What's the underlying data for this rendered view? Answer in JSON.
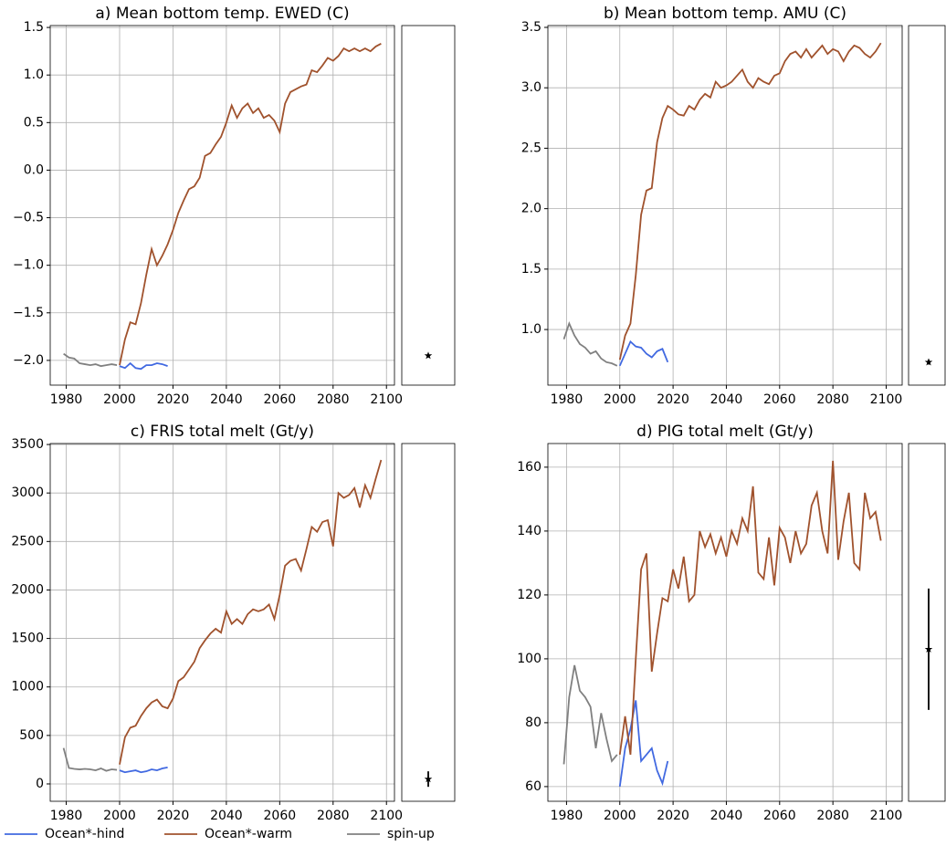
{
  "chart_data": [
    {
      "type": "line",
      "title": "a) Mean bottom temp. EWED (C)",
      "grid": true,
      "xlim": [
        1974,
        2103
      ],
      "xticks": [
        1980,
        2000,
        2020,
        2040,
        2060,
        2080,
        2100
      ],
      "ylim": [
        -2.26,
        1.52
      ],
      "yticks": [
        {
          "value": -2,
          "label": "−2.0"
        },
        {
          "value": -1.5,
          "label": "−1.5"
        },
        {
          "value": -1,
          "label": "−1.0"
        },
        {
          "value": -0.5,
          "label": "−0.5"
        },
        {
          "value": 0,
          "label": "0.0"
        },
        0.5,
        {
          "value": 1,
          "label": "1.0"
        },
        1.5
      ],
      "series": [
        {
          "name": "Ocean*-hind",
          "color": "#4169e1",
          "x": [
            2000,
            2002,
            2004,
            2006,
            2008,
            2010,
            2012,
            2014,
            2016,
            2018
          ],
          "values": [
            -2.06,
            -2.08,
            -2.03,
            -2.08,
            -2.09,
            -2.05,
            -2.05,
            -2.03,
            -2.04,
            -2.06
          ]
        },
        {
          "name": "Ocean*-warm",
          "color": "#a0522d",
          "x": [
            2000,
            2002,
            2004,
            2006,
            2008,
            2010,
            2012,
            2014,
            2016,
            2018,
            2020,
            2022,
            2024,
            2026,
            2028,
            2030,
            2032,
            2034,
            2036,
            2038,
            2040,
            2042,
            2044,
            2046,
            2048,
            2050,
            2052,
            2054,
            2056,
            2058,
            2060,
            2062,
            2064,
            2066,
            2068,
            2070,
            2072,
            2074,
            2076,
            2078,
            2080,
            2082,
            2084,
            2086,
            2088,
            2090,
            2092,
            2094,
            2096,
            2098
          ],
          "values": [
            -2.05,
            -1.78,
            -1.6,
            -1.62,
            -1.4,
            -1.1,
            -0.83,
            -1.0,
            -0.9,
            -0.78,
            -0.63,
            -0.45,
            -0.32,
            -0.2,
            -0.17,
            -0.08,
            0.15,
            0.18,
            0.27,
            0.35,
            0.5,
            0.68,
            0.55,
            0.65,
            0.7,
            0.6,
            0.65,
            0.55,
            0.58,
            0.52,
            0.4,
            0.7,
            0.82,
            0.85,
            0.88,
            0.9,
            1.05,
            1.03,
            1.1,
            1.18,
            1.15,
            1.2,
            1.28,
            1.25,
            1.28,
            1.25,
            1.28,
            1.25,
            1.3,
            1.33
          ]
        },
        {
          "name": "spin-up",
          "color": "#808080",
          "x": [
            1979,
            1981,
            1983,
            1985,
            1987,
            1989,
            1991,
            1993,
            1995,
            1997,
            1999
          ],
          "values": [
            -1.93,
            -1.97,
            -1.98,
            -2.03,
            -2.04,
            -2.05,
            -2.04,
            -2.06,
            -2.05,
            -2.04,
            -2.05
          ]
        }
      ],
      "obs": {
        "value": -1.95,
        "error": 0.02,
        "color": "#000000"
      }
    },
    {
      "type": "line",
      "title": "b) Mean bottom temp. AMU (C)",
      "grid": true,
      "xlim": [
        1973,
        2106
      ],
      "xticks": [
        1980,
        2000,
        2020,
        2040,
        2060,
        2080,
        2100
      ],
      "ylim": [
        0.54,
        3.515
      ],
      "yticks": [
        {
          "value": 1,
          "label": "1.0"
        },
        1.5,
        {
          "value": 2,
          "label": "2.0"
        },
        2.5,
        {
          "value": 3,
          "label": "3.0"
        },
        3.5
      ],
      "series": [
        {
          "name": "Ocean*-hind",
          "color": "#4169e1",
          "x": [
            2000,
            2002,
            2004,
            2006,
            2008,
            2010,
            2012,
            2014,
            2016,
            2018
          ],
          "values": [
            0.7,
            0.8,
            0.9,
            0.86,
            0.85,
            0.8,
            0.77,
            0.82,
            0.84,
            0.73
          ]
        },
        {
          "name": "Ocean*-warm",
          "color": "#a0522d",
          "x": [
            2000,
            2002,
            2004,
            2006,
            2008,
            2010,
            2012,
            2014,
            2016,
            2018,
            2020,
            2022,
            2024,
            2026,
            2028,
            2030,
            2032,
            2034,
            2036,
            2038,
            2040,
            2042,
            2044,
            2046,
            2048,
            2050,
            2052,
            2054,
            2056,
            2058,
            2060,
            2062,
            2064,
            2066,
            2068,
            2070,
            2072,
            2074,
            2076,
            2078,
            2080,
            2082,
            2084,
            2086,
            2088,
            2090,
            2092,
            2094,
            2096,
            2098
          ],
          "values": [
            0.75,
            0.95,
            1.05,
            1.45,
            1.95,
            2.15,
            2.17,
            2.55,
            2.75,
            2.85,
            2.82,
            2.78,
            2.77,
            2.85,
            2.82,
            2.9,
            2.95,
            2.92,
            3.05,
            3.0,
            3.02,
            3.05,
            3.1,
            3.15,
            3.05,
            3.0,
            3.08,
            3.05,
            3.03,
            3.1,
            3.12,
            3.22,
            3.28,
            3.3,
            3.25,
            3.32,
            3.25,
            3.3,
            3.35,
            3.28,
            3.32,
            3.3,
            3.22,
            3.3,
            3.35,
            3.33,
            3.28,
            3.25,
            3.3,
            3.37
          ]
        },
        {
          "name": "spin-up",
          "color": "#808080",
          "x": [
            1979,
            1981,
            1983,
            1985,
            1987,
            1989,
            1991,
            1993,
            1995,
            1997,
            1999
          ],
          "values": [
            0.92,
            1.05,
            0.95,
            0.88,
            0.85,
            0.8,
            0.82,
            0.76,
            0.73,
            0.72,
            0.7
          ]
        }
      ],
      "obs": {
        "value": 0.73,
        "error": 0.02,
        "color": "#000000"
      }
    },
    {
      "type": "line",
      "title": "c) FRIS total melt (Gt/y)",
      "grid": true,
      "xlim": [
        1974,
        2103
      ],
      "xticks": [
        1980,
        2000,
        2020,
        2040,
        2060,
        2080,
        2100
      ],
      "ylim": [
        -179,
        3510
      ],
      "yticks": [
        0,
        500,
        1000,
        1500,
        2000,
        2500,
        3000,
        3500
      ],
      "series": [
        {
          "name": "Ocean*-hind",
          "color": "#4169e1",
          "x": [
            2000,
            2002,
            2004,
            2006,
            2008,
            2010,
            2012,
            2014,
            2016,
            2018
          ],
          "values": [
            140,
            120,
            130,
            140,
            120,
            130,
            150,
            140,
            160,
            170
          ]
        },
        {
          "name": "Ocean*-warm",
          "color": "#a0522d",
          "x": [
            2000,
            2002,
            2004,
            2006,
            2008,
            2010,
            2012,
            2014,
            2016,
            2018,
            2020,
            2022,
            2024,
            2026,
            2028,
            2030,
            2032,
            2034,
            2036,
            2038,
            2040,
            2042,
            2044,
            2046,
            2048,
            2050,
            2052,
            2054,
            2056,
            2058,
            2060,
            2062,
            2064,
            2066,
            2068,
            2070,
            2072,
            2074,
            2076,
            2078,
            2080,
            2082,
            2084,
            2086,
            2088,
            2090,
            2092,
            2094,
            2096,
            2098
          ],
          "values": [
            200,
            480,
            580,
            600,
            700,
            780,
            840,
            870,
            800,
            780,
            880,
            1060,
            1100,
            1180,
            1260,
            1400,
            1480,
            1550,
            1600,
            1560,
            1780,
            1650,
            1700,
            1650,
            1750,
            1800,
            1780,
            1800,
            1850,
            1700,
            1950,
            2250,
            2300,
            2320,
            2200,
            2420,
            2650,
            2600,
            2700,
            2720,
            2450,
            3000,
            2950,
            2980,
            3050,
            2850,
            3080,
            2950,
            3150,
            3340
          ]
        },
        {
          "name": "spin-up",
          "color": "#808080",
          "x": [
            1979,
            1981,
            1983,
            1985,
            1987,
            1989,
            1991,
            1993,
            1995,
            1997,
            1999
          ],
          "values": [
            370,
            165,
            155,
            150,
            155,
            150,
            140,
            160,
            135,
            150,
            145
          ]
        }
      ],
      "obs": {
        "value": 50,
        "error": 80,
        "color": "#000000"
      }
    },
    {
      "type": "line",
      "title": "d) PIG total melt (Gt/y)",
      "grid": true,
      "xlim": [
        1973,
        2106
      ],
      "xticks": [
        1980,
        2000,
        2020,
        2040,
        2060,
        2080,
        2100
      ],
      "ylim": [
        55.4,
        167.4
      ],
      "yticks": [
        60,
        80,
        100,
        120,
        140,
        160
      ],
      "series": [
        {
          "name": "Ocean*-hind",
          "color": "#4169e1",
          "x": [
            2000,
            2002,
            2004,
            2006,
            2008,
            2010,
            2012,
            2014,
            2016,
            2018
          ],
          "values": [
            60,
            72,
            78,
            87,
            68,
            70,
            72,
            65,
            61,
            68
          ]
        },
        {
          "name": "Ocean*-warm",
          "color": "#a0522d",
          "x": [
            2000,
            2002,
            2004,
            2006,
            2008,
            2010,
            2012,
            2014,
            2016,
            2018,
            2020,
            2022,
            2024,
            2026,
            2028,
            2030,
            2032,
            2034,
            2036,
            2038,
            2040,
            2042,
            2044,
            2046,
            2048,
            2050,
            2052,
            2054,
            2056,
            2058,
            2060,
            2062,
            2064,
            2066,
            2068,
            2070,
            2072,
            2074,
            2076,
            2078,
            2080,
            2082,
            2084,
            2086,
            2088,
            2090,
            2092,
            2094,
            2096,
            2098
          ],
          "values": [
            70,
            82,
            70,
            100,
            128,
            133,
            96,
            108,
            119,
            118,
            128,
            122,
            132,
            118,
            120,
            140,
            135,
            139,
            133,
            138,
            132,
            140,
            136,
            144,
            140,
            154,
            127,
            125,
            138,
            123,
            141,
            138,
            130,
            140,
            133,
            136,
            148,
            152,
            140,
            133,
            162,
            131,
            143,
            152,
            130,
            128,
            152,
            144,
            146,
            137
          ]
        },
        {
          "name": "spin-up",
          "color": "#808080",
          "x": [
            1979,
            1981,
            1983,
            1985,
            1987,
            1989,
            1991,
            1993,
            1995,
            1997,
            1999
          ],
          "values": [
            67,
            88,
            98,
            90,
            88,
            85,
            72,
            83,
            75,
            68,
            70
          ]
        }
      ],
      "obs": {
        "value": 103,
        "error": 19,
        "color": "#000000"
      }
    }
  ]
}
